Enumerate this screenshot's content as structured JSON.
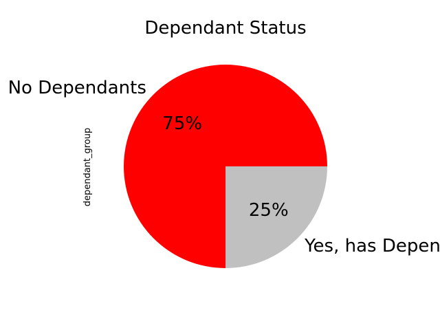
{
  "chart_data": {
    "type": "pie",
    "title": "Dependant Status",
    "ylabel": "dependant_group",
    "categories": [
      "No Dependants",
      "Yes, has Dependants"
    ],
    "values": [
      75,
      25
    ],
    "value_labels": [
      "75%",
      "25%"
    ],
    "colors": [
      "#ff0000",
      "#c0c0c0"
    ],
    "legend": "none"
  }
}
